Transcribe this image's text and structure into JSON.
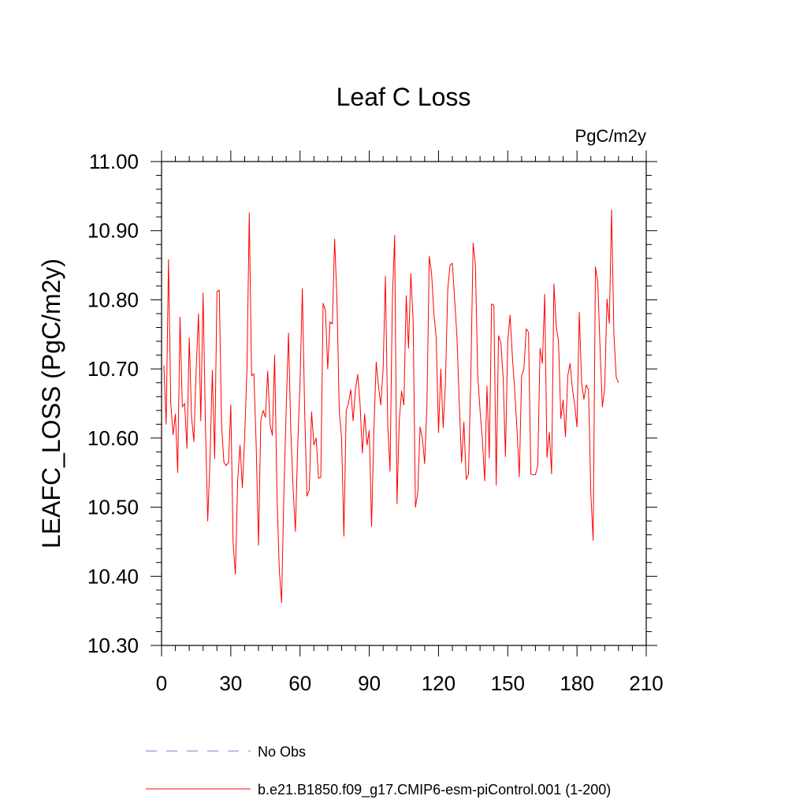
{
  "chart_data": {
    "type": "line",
    "title": "Leaf C Loss",
    "units_label": "PgC/m2y",
    "ylabel": "LEAFC_LOSS  (PgC/m2y)",
    "xlabel": "",
    "xlim": [
      0,
      210
    ],
    "ylim": [
      10.3,
      11.0
    ],
    "xticks": [
      0,
      30,
      60,
      90,
      120,
      150,
      180,
      210
    ],
    "xtick_labels": [
      "0",
      "30",
      "60",
      "90",
      "120",
      "150",
      "180",
      "210"
    ],
    "yticks": [
      10.3,
      10.4,
      10.5,
      10.6,
      10.7,
      10.8,
      10.9,
      11.0
    ],
    "ytick_labels": [
      "10.30",
      "10.40",
      "10.50",
      "10.60",
      "10.70",
      "10.80",
      "10.90",
      "11.00"
    ],
    "series": [
      {
        "name": "b.e21.B1850.f09_g17.CMIP6-esm-piControl.001 (1-200)",
        "color": "#ff0000",
        "dash": "solid",
        "x_start": 1,
        "x_step": 1,
        "values": [
          10.705,
          10.62,
          10.858,
          10.65,
          10.605,
          10.635,
          10.55,
          10.775,
          10.645,
          10.65,
          10.585,
          10.745,
          10.63,
          10.595,
          10.7,
          10.78,
          10.625,
          10.81,
          10.62,
          10.48,
          10.57,
          10.698,
          10.57,
          10.812,
          10.814,
          10.62,
          10.565,
          10.56,
          10.565,
          10.648,
          10.448,
          10.403,
          10.54,
          10.59,
          10.528,
          10.6,
          10.7,
          10.926,
          10.69,
          10.693,
          10.59,
          10.445,
          10.625,
          10.64,
          10.63,
          10.697,
          10.62,
          10.604,
          10.72,
          10.52,
          10.41,
          10.362,
          10.52,
          10.642,
          10.752,
          10.61,
          10.527,
          10.465,
          10.59,
          10.68,
          10.816,
          10.64,
          10.516,
          10.525,
          10.638,
          10.59,
          10.6,
          10.542,
          10.543,
          10.795,
          10.785,
          10.7,
          10.768,
          10.765,
          10.888,
          10.8,
          10.64,
          10.6,
          10.458,
          10.64,
          10.65,
          10.67,
          10.625,
          10.67,
          10.692,
          10.65,
          10.578,
          10.635,
          10.59,
          10.611,
          10.472,
          10.61,
          10.71,
          10.674,
          10.648,
          10.7,
          10.834,
          10.62,
          10.552,
          10.8,
          10.893,
          10.505,
          10.625,
          10.668,
          10.648,
          10.806,
          10.73,
          10.838,
          10.77,
          10.5,
          10.52,
          10.616,
          10.6,
          10.563,
          10.65,
          10.863,
          10.838,
          10.78,
          10.745,
          10.608,
          10.7,
          10.615,
          10.68,
          10.815,
          10.85,
          10.853,
          10.8,
          10.746,
          10.65,
          10.565,
          10.623,
          10.54,
          10.548,
          10.69,
          10.882,
          10.85,
          10.69,
          10.64,
          10.598,
          10.538,
          10.675,
          10.571,
          10.794,
          10.792,
          10.532,
          10.748,
          10.738,
          10.688,
          10.573,
          10.74,
          10.778,
          10.718,
          10.67,
          10.612,
          10.544,
          10.69,
          10.7,
          10.758,
          10.753,
          10.548,
          10.547,
          10.547,
          10.56,
          10.73,
          10.708,
          10.808,
          10.572,
          10.608,
          10.548,
          10.823,
          10.762,
          10.74,
          10.628,
          10.655,
          10.602,
          10.69,
          10.708,
          10.672,
          10.648,
          10.616,
          10.782,
          10.68,
          10.656,
          10.677,
          10.67,
          10.52,
          10.452,
          10.848,
          10.825,
          10.73,
          10.645,
          10.672,
          10.801,
          10.766,
          10.93,
          10.75,
          10.688,
          10.68
        ]
      }
    ],
    "legend": {
      "placement": "bottom-left",
      "entries": [
        {
          "label": "No Obs",
          "color": "#7b7bd4",
          "dash": "dashed"
        },
        {
          "label": "b.e21.B1850.f09_g17.CMIP6-esm-piControl.001 (1-200)",
          "color": "#ff0000",
          "dash": "solid"
        }
      ]
    }
  }
}
